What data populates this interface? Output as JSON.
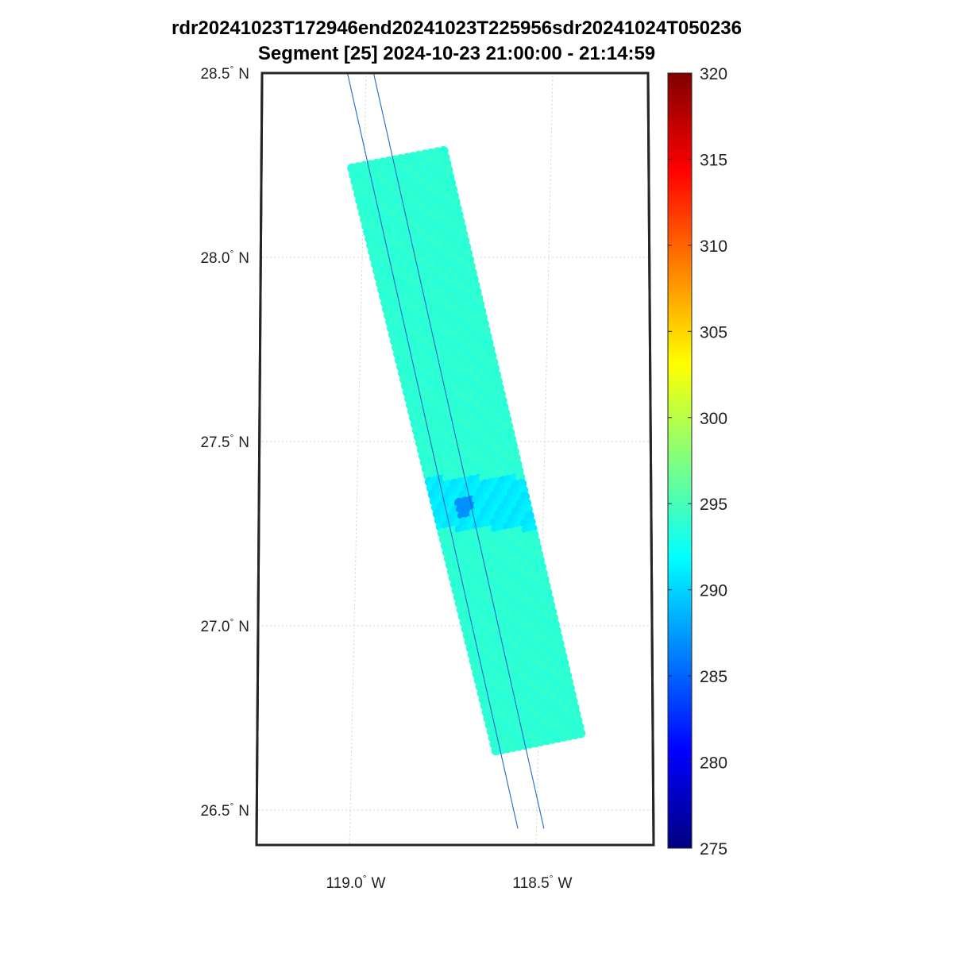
{
  "title_line1": "rdr20241023T172946end20241023T225956sdr20241024T050236",
  "title_line2": "Segment [25] 2024-10-23 21:00:00 - 21:14:59",
  "colormap": "jet",
  "colorbar": {
    "min": 275,
    "max": 320,
    "ticks": [
      "275",
      "280",
      "285",
      "290",
      "295",
      "300",
      "305",
      "310",
      "315",
      "320"
    ]
  },
  "lat_labels": [
    {
      "value": 28.5,
      "label": "28.5"
    },
    {
      "value": 28.0,
      "label": "28.0"
    },
    {
      "value": 27.5,
      "label": "27.5"
    },
    {
      "value": 27.0,
      "label": "27.0"
    },
    {
      "value": 26.5,
      "label": "26.5"
    }
  ],
  "lat_suffix": "N",
  "lon_labels": [
    {
      "value": -119.0,
      "label": "119.0"
    },
    {
      "value": -118.5,
      "label": "118.5"
    }
  ],
  "lon_suffix": "W",
  "degree_symbol": "°",
  "swath": {
    "corners": [
      [
        -119.04,
        28.24
      ],
      [
        -118.78,
        28.29
      ],
      [
        -118.38,
        26.71
      ],
      [
        -118.62,
        26.66
      ]
    ],
    "background_value": 293.8,
    "cold_band_lat": [
      27.26,
      27.4
    ],
    "cold_band_value": 290.6,
    "cold_spot": {
      "lon": -118.71,
      "lat": 27.32,
      "value": 287.0
    }
  },
  "track_lines": [
    [
      [
        -119.05,
        28.5
      ],
      [
        -118.55,
        26.45
      ]
    ],
    [
      [
        -118.98,
        28.5
      ],
      [
        -118.48,
        26.45
      ]
    ]
  ],
  "track_color": "#2266cc"
}
